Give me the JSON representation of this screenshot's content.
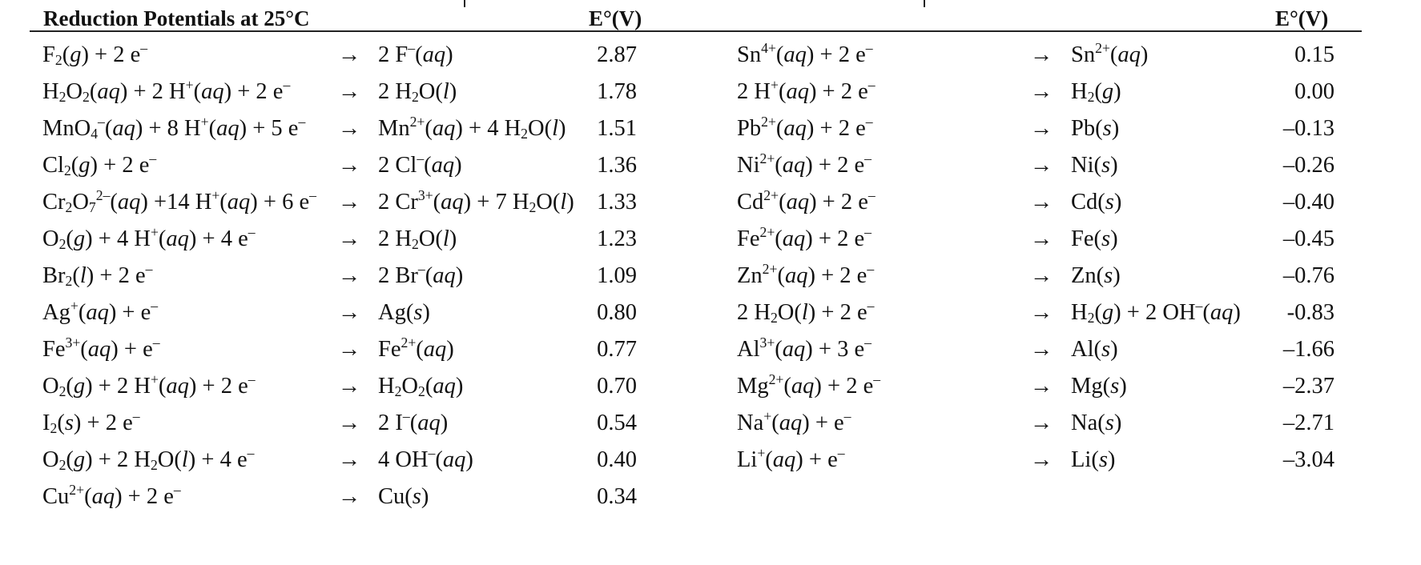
{
  "table": {
    "title": "Reduction Potentials at 25°C",
    "ev_header_left": "E°(V)",
    "ev_header_right": "E°(V)",
    "left_rows": [
      {
        "reactants": "F₂(g) + 2 e⁻",
        "products": "2 F⁻(aq)",
        "e0": "2.87"
      },
      {
        "reactants": "H₂O₂(aq) + 2 H⁺(aq) + 2 e⁻",
        "products": "2 H₂O(l)",
        "e0": "1.78"
      },
      {
        "reactants": "MnO₄⁻(aq) + 8 H⁺(aq) + 5 e⁻",
        "products": "Mn²⁺(aq) + 4 H₂O(l)",
        "e0": "1.51"
      },
      {
        "reactants": "Cl₂(g) + 2 e⁻",
        "products": "2 Cl⁻(aq)",
        "e0": "1.36"
      },
      {
        "reactants": "Cr₂O₇²⁻(aq) +14 H⁺(aq) + 6 e⁻",
        "products": "2 Cr³⁺(aq) + 7 H₂O(l)",
        "e0": "1.33"
      },
      {
        "reactants": "O₂(g) + 4 H⁺(aq) + 4 e⁻",
        "products": "2 H₂O(l)",
        "e0": "1.23"
      },
      {
        "reactants": "Br₂(l) + 2 e⁻",
        "products": "2 Br⁻(aq)",
        "e0": "1.09"
      },
      {
        "reactants": "Ag⁺(aq) + e⁻",
        "products": "Ag(s)",
        "e0": "0.80"
      },
      {
        "reactants": "Fe³⁺(aq) + e⁻",
        "products": "Fe²⁺(aq)",
        "e0": "0.77"
      },
      {
        "reactants": "O₂(g) + 2 H⁺(aq) + 2 e⁻",
        "products": "H₂O₂(aq)",
        "e0": "0.70"
      },
      {
        "reactants": "I₂(s) + 2 e⁻",
        "products": "2 I⁻(aq)",
        "e0": "0.54"
      },
      {
        "reactants": "O₂(g) + 2 H₂O(l) + 4 e⁻",
        "products": "4 OH⁻(aq)",
        "e0": "0.40"
      },
      {
        "reactants": "Cu²⁺(aq) + 2 e⁻",
        "products": "Cu(s)",
        "e0": "0.34"
      }
    ],
    "right_rows": [
      {
        "reactants": "Sn⁴⁺(aq) + 2 e⁻",
        "products": "Sn²⁺(aq)",
        "e0": "0.15"
      },
      {
        "reactants": "2 H⁺(aq) + 2 e⁻",
        "products": "H₂(g)",
        "e0": "0.00"
      },
      {
        "reactants": "Pb²⁺(aq) + 2 e⁻",
        "products": "Pb(s)",
        "e0": "–0.13"
      },
      {
        "reactants": "Ni²⁺(aq) + 2 e⁻",
        "products": "Ni(s)",
        "e0": "–0.26"
      },
      {
        "reactants": "Cd²⁺(aq) + 2 e⁻",
        "products": "Cd(s)",
        "e0": "–0.40"
      },
      {
        "reactants": "Fe²⁺(aq) + 2 e⁻",
        "products": "Fe(s)",
        "e0": "–0.45"
      },
      {
        "reactants": "Zn²⁺(aq) + 2 e⁻",
        "products": "Zn(s)",
        "e0": "–0.76"
      },
      {
        "reactants": "2 H₂O(l) + 2 e⁻",
        "products": "H₂(g) + 2 OH⁻(aq)",
        "e0": "-0.83"
      },
      {
        "reactants": "Al³⁺(aq) + 3 e⁻",
        "products": "Al(s)",
        "e0": "–1.66"
      },
      {
        "reactants": "Mg²⁺(aq) + 2 e⁻",
        "products": "Mg(s)",
        "e0": "–2.37"
      },
      {
        "reactants": "Na⁺(aq) + e⁻",
        "products": "Na(s)",
        "e0": "–2.71"
      },
      {
        "reactants": "Li⁺(aq) + e⁻",
        "products": "Li(s)",
        "e0": "–3.04"
      }
    ]
  }
}
